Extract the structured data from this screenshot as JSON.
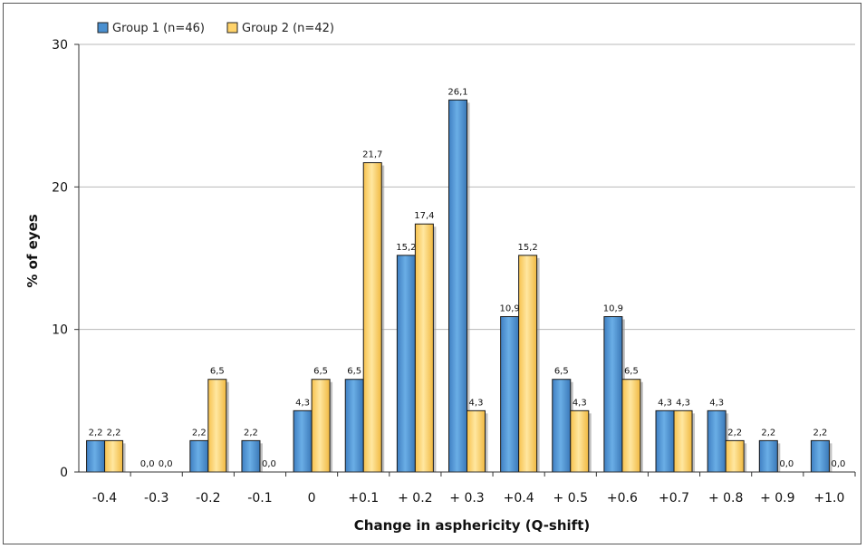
{
  "chart_data": {
    "type": "bar",
    "categories": [
      "-0.4",
      "-0.3",
      "-0.2",
      "-0.1",
      "0",
      "+0.1",
      "+ 0.2",
      "+ 0.3",
      "+0.4",
      "+ 0.5",
      "+0.6",
      "+0.7",
      "+ 0.8",
      "+ 0.9",
      "+1.0"
    ],
    "series": [
      {
        "name": "Group 1 (n=46)",
        "values": [
          2.2,
          0.0,
          2.2,
          2.2,
          4.3,
          6.5,
          15.2,
          26.1,
          10.9,
          6.5,
          10.9,
          4.3,
          4.3,
          2.2,
          2.2
        ],
        "labels": [
          "2,2",
          "0,0",
          "2,2",
          "2,2",
          "4,3",
          "6,5",
          "15,2",
          "26,1",
          "10,9",
          "6,5",
          "10,9",
          "4,3",
          "4,3",
          "2,2",
          "2,2"
        ],
        "color": "#4a90d0"
      },
      {
        "name": "Group 2 (n=42)",
        "values": [
          2.2,
          0.0,
          6.5,
          0.0,
          6.5,
          21.7,
          17.4,
          4.3,
          15.2,
          4.3,
          6.5,
          4.3,
          2.2,
          0.0,
          0.0
        ],
        "labels": [
          "2,2",
          "0,0",
          "6,5",
          "0,0",
          "6,5",
          "21,7",
          "17,4",
          "4,3",
          "15,2",
          "4,3",
          "6,5",
          "4,3",
          "2,2",
          "0,0",
          "0,0"
        ],
        "color": "#ffd36a"
      }
    ],
    "title": "",
    "xlabel": "Change in asphericity (Q-shift)",
    "ylabel": "% of eyes",
    "ylim": [
      0,
      30
    ],
    "yticks": [
      "0",
      "10",
      "20",
      "30"
    ],
    "grid": true,
    "legend_position": "top-left"
  }
}
